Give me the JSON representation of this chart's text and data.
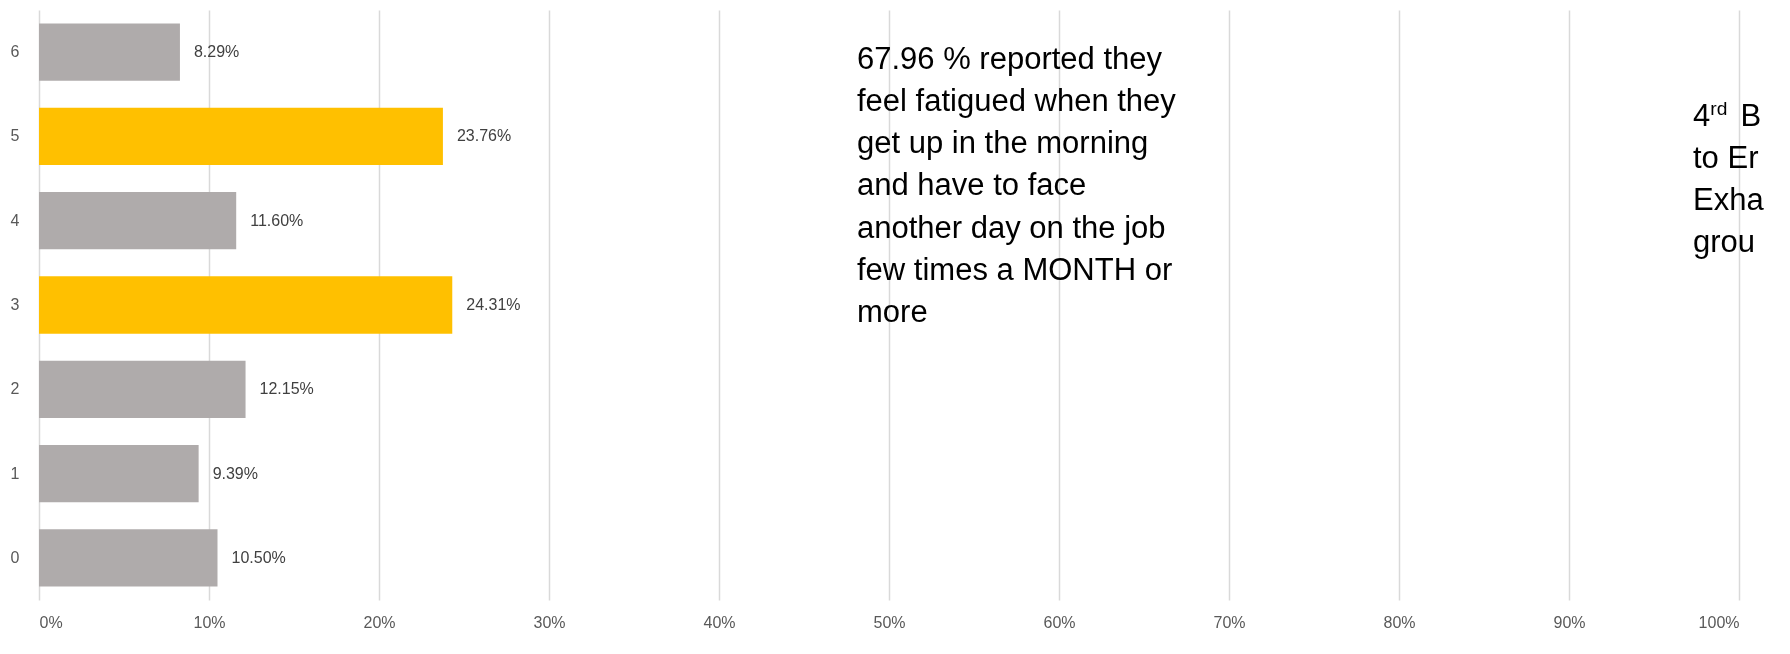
{
  "chart_data": {
    "type": "bar",
    "orientation": "horizontal",
    "categories": [
      "6",
      "5",
      "4",
      "3",
      "2",
      "1",
      "0"
    ],
    "values": [
      8.29,
      23.76,
      11.6,
      24.31,
      12.15,
      9.39,
      10.5
    ],
    "colors": [
      "#afabab",
      "#ffc000",
      "#afabab",
      "#ffc000",
      "#afabab",
      "#afabab",
      "#afabab"
    ],
    "value_labels": [
      "8.29%",
      "23.76%",
      "11.60%",
      "24.31%",
      "12.15%",
      "9.39%",
      "10.50%"
    ],
    "xlim": [
      0,
      100
    ],
    "xticks": [
      {
        "value": 0,
        "label": "0%"
      },
      {
        "value": 10,
        "label": "10%"
      },
      {
        "value": 20,
        "label": "20%"
      },
      {
        "value": 30,
        "label": "30%"
      },
      {
        "value": 40,
        "label": "40%"
      },
      {
        "value": 50,
        "label": "50%"
      },
      {
        "value": 60,
        "label": "60%"
      },
      {
        "value": 70,
        "label": "70%"
      },
      {
        "value": 80,
        "label": "80%"
      },
      {
        "value": 90,
        "label": "90%"
      },
      {
        "value": 100,
        "label": "100%"
      }
    ],
    "grid": "x",
    "annotations": [
      "67.96 % reported they\nfeel fatigued when they\nget up in the morning\nand have to face\nanother day on the job\nfew times a MONTH or\nmore",
      "4$^{rd}$ B\nto Er\nExha\ngrou"
    ]
  }
}
